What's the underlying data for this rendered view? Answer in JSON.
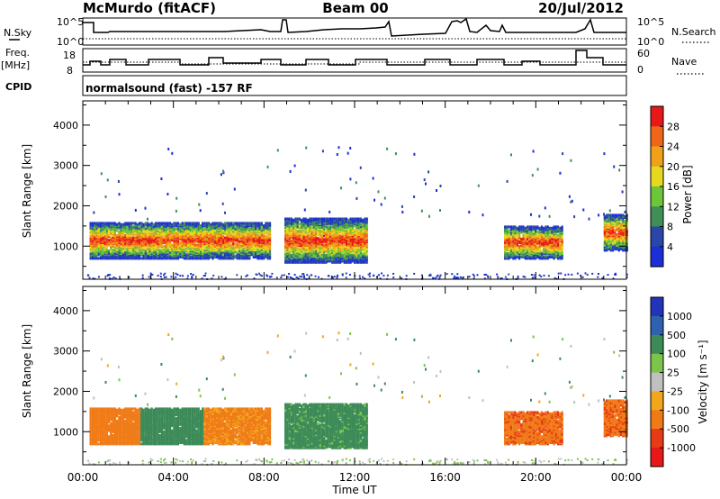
{
  "header": {
    "station": "McMurdo (fitACF)",
    "beam": "Beam 00",
    "date": "20/Jul/2012"
  },
  "left_labels": {
    "nsky": "N.Sky",
    "freq_line1": "Freq.",
    "freq_line2": "[MHz]",
    "cpid": "CPID"
  },
  "right_labels": {
    "nsearch": "N.Search",
    "nave": "Nave"
  },
  "noise_panel": {
    "left_ticks": [
      "10^5",
      "10^0"
    ],
    "right_ticks": [
      "10^5",
      "10^0"
    ]
  },
  "freq_panel": {
    "left_ticks": [
      "18",
      "8"
    ],
    "right_ticks": [
      "60",
      "0"
    ]
  },
  "cpid_panel": {
    "text": "normalsound (fast) -157 RF"
  },
  "axes": {
    "xlabel": "Time UT",
    "ylabel": "Slant Range [km]",
    "x_ticks": [
      "00:00",
      "04:00",
      "08:00",
      "12:00",
      "16:00",
      "20:00",
      "00:00"
    ],
    "y_ticks": [
      "1000",
      "2000",
      "3000",
      "4000"
    ],
    "ylim": [
      180,
      4600
    ],
    "xlim_hours": [
      0,
      24
    ]
  },
  "power_scale": {
    "title": "Power [dB]",
    "ticks": [
      "4",
      "8",
      "12",
      "16",
      "20",
      "24",
      "28"
    ],
    "colors": [
      "#1a2fd8",
      "#2a46a8",
      "#3f8f57",
      "#6cc63a",
      "#e6d81e",
      "#f0a019",
      "#f06618",
      "#e81818"
    ]
  },
  "velocity_scale": {
    "title": "Velocity [m s⁻¹]",
    "ticks": [
      "1000",
      "500",
      "100",
      "25",
      "-25",
      "-100",
      "-500",
      "-1000"
    ],
    "colors": [
      "#2235b8",
      "#2e62b0",
      "#3c8a58",
      "#7cc44a",
      "#c0c0c0",
      "#f2a619",
      "#f07a16",
      "#e83a16",
      "#e81818"
    ]
  },
  "chart_data": [
    {
      "type": "heatmap",
      "title": "Power [dB]",
      "xlabel": "Time UT",
      "ylabel": "Slant Range [km]",
      "x_ticks": [
        "00:00",
        "04:00",
        "08:00",
        "12:00",
        "16:00",
        "20:00",
        "00:00"
      ],
      "y_ticks": [
        1000,
        2000,
        3000,
        4000
      ],
      "ylim": [
        180,
        4600
      ],
      "colorbar_ticks": [
        4,
        8,
        12,
        16,
        20,
        24,
        28
      ],
      "echo_regions": [
        {
          "start_hour": 0.3,
          "end_hour": 8.3,
          "range_km": [
            700,
            1600
          ],
          "peak_db": 28
        },
        {
          "start_hour": 8.9,
          "end_hour": 12.5,
          "range_km": [
            600,
            1700
          ],
          "peak_db": 28
        },
        {
          "start_hour": 18.6,
          "end_hour": 21.2,
          "range_km": [
            700,
            1500
          ],
          "peak_db": 26
        },
        {
          "start_hour": 23.0,
          "end_hour": 24.0,
          "range_km": [
            900,
            1800
          ],
          "peak_db": 22
        }
      ]
    },
    {
      "type": "heatmap",
      "title": "Velocity [m s⁻¹]",
      "xlabel": "Time UT",
      "ylabel": "Slant Range [km]",
      "x_ticks": [
        "00:00",
        "04:00",
        "08:00",
        "12:00",
        "16:00",
        "20:00",
        "00:00"
      ],
      "y_ticks": [
        1000,
        2000,
        3000,
        4000
      ],
      "ylim": [
        180,
        4600
      ],
      "colorbar_ticks": [
        1000,
        500,
        100,
        25,
        -25,
        -100,
        -500,
        -1000
      ],
      "echo_regions": [
        {
          "start_hour": 0.3,
          "end_hour": 2.5,
          "range_km": [
            700,
            1600
          ],
          "velocity": -300
        },
        {
          "start_hour": 2.5,
          "end_hour": 5.3,
          "range_km": [
            700,
            1700
          ],
          "velocity": 300
        },
        {
          "start_hour": 5.3,
          "end_hour": 8.3,
          "range_km": [
            700,
            1700
          ],
          "velocity": -150
        },
        {
          "start_hour": 8.9,
          "end_hour": 12.5,
          "range_km": [
            600,
            1700
          ],
          "velocity": 200
        },
        {
          "start_hour": 18.6,
          "end_hour": 21.2,
          "range_km": [
            700,
            1500
          ],
          "velocity": -400
        },
        {
          "start_hour": 23.0,
          "end_hour": 24.0,
          "range_km": [
            900,
            1800
          ],
          "velocity": -400
        }
      ]
    }
  ]
}
